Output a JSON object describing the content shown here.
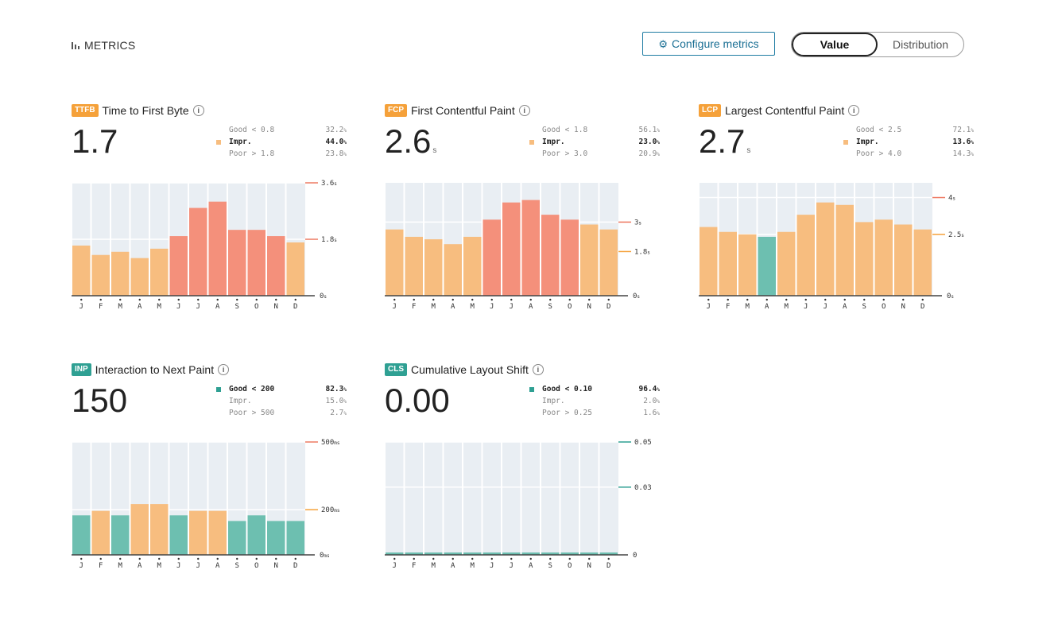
{
  "header": {
    "title": "METRICS",
    "configure_label": "Configure metrics",
    "toggle": {
      "value_label": "Value",
      "distribution_label": "Distribution"
    }
  },
  "colors": {
    "good": "#6dbfb0",
    "impr": "#f7bd7f",
    "poor": "#f4907b",
    "ttfb": "#f5a13a",
    "inp": "#2fa093",
    "cls_badge": "#2fa093"
  },
  "chart_data": [
    {
      "type": "bar",
      "key": "ttfb",
      "badge": "TTFB",
      "badge_color": "#f5a13a",
      "title": "Time to First Byte",
      "value": "1.7",
      "unit": "",
      "dist": [
        {
          "label": "Good < 0.8",
          "pct": "32.2",
          "unit": "%"
        },
        {
          "label": "Impr.",
          "pct": "44.0",
          "unit": "%",
          "selected": true,
          "color": "#f7bd7f"
        },
        {
          "label": "Poor > 1.8",
          "pct": "23.8",
          "unit": "%"
        }
      ],
      "categories": [
        "J",
        "F",
        "M",
        "A",
        "M",
        "J",
        "J",
        "A",
        "S",
        "O",
        "N",
        "D"
      ],
      "values": [
        1.6,
        1.3,
        1.4,
        1.2,
        1.5,
        1.9,
        2.8,
        3.0,
        2.1,
        2.1,
        1.9,
        1.7
      ],
      "colors": [
        "impr",
        "impr",
        "impr",
        "impr",
        "impr",
        "poor",
        "poor",
        "poor",
        "poor",
        "poor",
        "poor",
        "impr"
      ],
      "ymax": 3.6,
      "thresholds": [
        {
          "value": 3.6,
          "label": "3.6",
          "unit": "s",
          "color": "poor"
        },
        {
          "value": 1.8,
          "label": "1.8",
          "unit": "s",
          "color": "poor"
        }
      ],
      "zero_label": "0",
      "zero_unit": "s"
    },
    {
      "type": "bar",
      "key": "fcp",
      "badge": "FCP",
      "badge_color": "#f5a13a",
      "title": "First Contentful Paint",
      "value": "2.6",
      "unit": "s",
      "dist": [
        {
          "label": "Good < 1.8",
          "pct": "56.1",
          "unit": "%"
        },
        {
          "label": "Impr.",
          "pct": "23.0",
          "unit": "%",
          "selected": true,
          "color": "#f7bd7f"
        },
        {
          "label": "Poor > 3.0",
          "pct": "20.9",
          "unit": "%"
        }
      ],
      "categories": [
        "J",
        "F",
        "M",
        "A",
        "M",
        "J",
        "J",
        "A",
        "S",
        "O",
        "N",
        "D"
      ],
      "values": [
        2.7,
        2.4,
        2.3,
        2.1,
        2.4,
        3.1,
        3.8,
        3.9,
        3.3,
        3.1,
        2.9,
        2.7
      ],
      "colors": [
        "impr",
        "impr",
        "impr",
        "impr",
        "impr",
        "poor",
        "poor",
        "poor",
        "poor",
        "poor",
        "impr",
        "impr"
      ],
      "ymax": 4.6,
      "thresholds": [
        {
          "value": 3.0,
          "label": "3",
          "unit": "s",
          "color": "poor"
        },
        {
          "value": 1.8,
          "label": "1.8",
          "unit": "s",
          "color": "impr"
        }
      ],
      "zero_label": "0",
      "zero_unit": "s"
    },
    {
      "type": "bar",
      "key": "lcp",
      "badge": "LCP",
      "badge_color": "#f5a13a",
      "title": "Largest Contentful Paint",
      "value": "2.7",
      "unit": "s",
      "dist": [
        {
          "label": "Good < 2.5",
          "pct": "72.1",
          "unit": "%"
        },
        {
          "label": "Impr.",
          "pct": "13.6",
          "unit": "%",
          "selected": true,
          "color": "#f7bd7f"
        },
        {
          "label": "Poor > 4.0",
          "pct": "14.3",
          "unit": "%"
        }
      ],
      "categories": [
        "J",
        "F",
        "M",
        "A",
        "M",
        "J",
        "J",
        "A",
        "S",
        "O",
        "N",
        "D"
      ],
      "values": [
        2.8,
        2.6,
        2.5,
        2.4,
        2.6,
        3.3,
        3.8,
        3.7,
        3.0,
        3.1,
        2.9,
        2.7
      ],
      "colors": [
        "impr",
        "impr",
        "impr",
        "good",
        "impr",
        "impr",
        "impr",
        "impr",
        "impr",
        "impr",
        "impr",
        "impr"
      ],
      "ymax": 4.6,
      "thresholds": [
        {
          "value": 4.0,
          "label": "4",
          "unit": "s",
          "color": "poor"
        },
        {
          "value": 2.5,
          "label": "2.5",
          "unit": "s",
          "color": "impr"
        }
      ],
      "zero_label": "0",
      "zero_unit": "s"
    },
    {
      "type": "bar",
      "key": "inp",
      "badge": "INP",
      "badge_color": "#2fa093",
      "title": "Interaction to Next Paint",
      "value": "150",
      "unit": "",
      "dist": [
        {
          "label": "Good < 200",
          "pct": "82.3",
          "unit": "%",
          "selected": true,
          "color": "#2fa093"
        },
        {
          "label": "Impr.",
          "pct": "15.0",
          "unit": "%"
        },
        {
          "label": "Poor > 500",
          "pct": "2.7",
          "unit": "%"
        }
      ],
      "categories": [
        "J",
        "F",
        "M",
        "A",
        "M",
        "J",
        "J",
        "A",
        "S",
        "O",
        "N",
        "D"
      ],
      "values": [
        175,
        195,
        175,
        225,
        225,
        175,
        195,
        195,
        150,
        175,
        150,
        150
      ],
      "colors": [
        "good",
        "impr",
        "good",
        "impr",
        "impr",
        "good",
        "impr",
        "impr",
        "good",
        "good",
        "good",
        "good"
      ],
      "ymax": 500,
      "thresholds": [
        {
          "value": 500,
          "label": "500",
          "unit": "ms",
          "color": "poor"
        },
        {
          "value": 200,
          "label": "200",
          "unit": "ms",
          "color": "impr"
        }
      ],
      "zero_label": "0",
      "zero_unit": "ms"
    },
    {
      "type": "bar",
      "key": "cls",
      "badge": "CLS",
      "badge_color": "#2fa093",
      "title": "Cumulative Layout Shift",
      "value": "0.00",
      "unit": "",
      "dist": [
        {
          "label": "Good < 0.10",
          "pct": "96.4",
          "unit": "%",
          "selected": true,
          "color": "#2fa093"
        },
        {
          "label": "Impr.",
          "pct": "2.0",
          "unit": "%"
        },
        {
          "label": "Poor > 0.25",
          "pct": "1.6",
          "unit": "%"
        }
      ],
      "categories": [
        "J",
        "F",
        "M",
        "A",
        "M",
        "J",
        "J",
        "A",
        "S",
        "O",
        "N",
        "D"
      ],
      "values": [
        0.001,
        0.001,
        0.001,
        0.001,
        0.001,
        0.001,
        0.001,
        0.001,
        0.001,
        0.001,
        0.001,
        0.001
      ],
      "colors": [
        "good",
        "good",
        "good",
        "good",
        "good",
        "good",
        "good",
        "good",
        "good",
        "good",
        "good",
        "good"
      ],
      "ymax": 0.05,
      "thresholds": [
        {
          "value": 0.05,
          "label": "0.05",
          "unit": "",
          "color": "good"
        },
        {
          "value": 0.03,
          "label": "0.03",
          "unit": "",
          "color": "good"
        }
      ],
      "zero_label": "0",
      "zero_unit": ""
    }
  ]
}
